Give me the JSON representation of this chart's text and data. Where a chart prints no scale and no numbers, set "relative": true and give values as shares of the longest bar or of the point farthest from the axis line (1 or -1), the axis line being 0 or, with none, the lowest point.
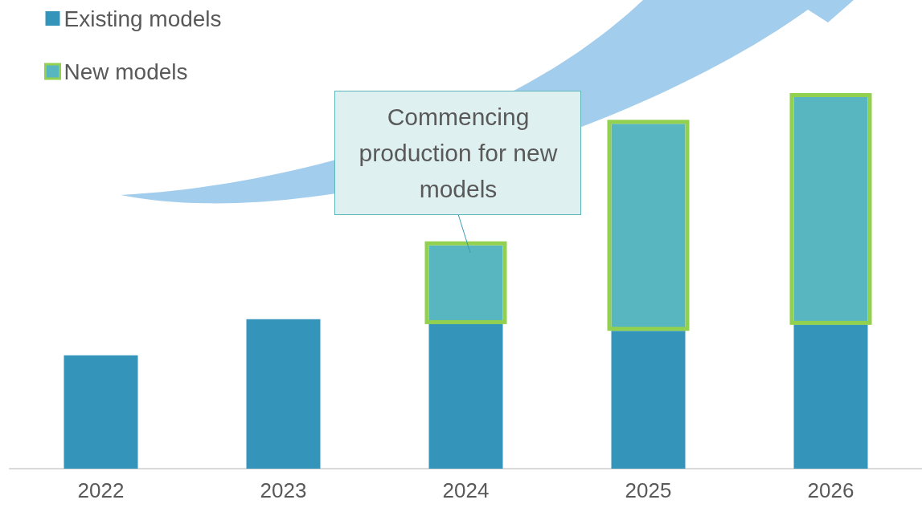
{
  "chart_data": {
    "type": "bar",
    "stacked": true,
    "relative": true,
    "categories": [
      "2022",
      "2023",
      "2024",
      "2025",
      "2026"
    ],
    "series": [
      {
        "name": "Existing models",
        "color": "#3494ba",
        "values": [
          0.305,
          0.402,
          0.389,
          0.371,
          0.387
        ]
      },
      {
        "name": "New models",
        "color": "#58b6c0",
        "values": [
          null,
          null,
          0.212,
          0.557,
          0.613
        ]
      }
    ],
    "annotations": [
      "Commencing production for new models"
    ],
    "legend": "top left",
    "grid": false
  }
}
